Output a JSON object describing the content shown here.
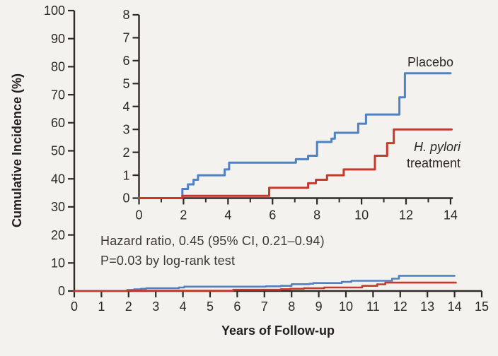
{
  "figure": {
    "ylabel": "Cumulative Incidence (%)",
    "xlabel": "Years of Follow-up",
    "annotation_line1": "Hazard ratio, 0.45 (95% CI, 0.21–0.94)",
    "annotation_line2": "P=0.03 by log-rank test",
    "series_labels": {
      "placebo": "Placebo",
      "treatment_line1": "H. pylori",
      "treatment_line2": "treatment"
    }
  },
  "chart_data": {
    "type": "line",
    "subtype": "cumulative-incidence-step-curves-with-inset",
    "title": "",
    "xlabel": "Years of Follow-up",
    "ylabel": "Cumulative Incidence (%)",
    "grid": false,
    "legend_position": "inline-curve-labels",
    "annotations": [
      "Hazard ratio, 0.45 (95% CI, 0.21–0.94)",
      "P=0.03 by log-rank test"
    ],
    "main_axes": {
      "xlim": [
        0,
        15
      ],
      "ylim": [
        0,
        100
      ],
      "xticks": [
        0,
        1,
        2,
        3,
        4,
        5,
        6,
        7,
        8,
        9,
        10,
        11,
        12,
        13,
        14,
        15
      ],
      "yticks": [
        0,
        10,
        20,
        30,
        40,
        50,
        60,
        70,
        80,
        90,
        100
      ]
    },
    "inset_axes": {
      "xlim": [
        0,
        14.1
      ],
      "ylim": [
        0,
        8
      ],
      "xticks": [
        0,
        2,
        4,
        6,
        8,
        10,
        12,
        14
      ],
      "minor_xticks": [
        1,
        3,
        5,
        7,
        9,
        11,
        13
      ],
      "yticks": [
        0,
        1,
        2,
        3,
        4,
        5,
        6,
        7,
        8
      ]
    },
    "series": [
      {
        "name": "Placebo",
        "color": "#4f81c3",
        "units": "percent cumulative incidence vs years of follow-up",
        "step_points": [
          [
            0,
            0
          ],
          [
            1.95,
            0.4
          ],
          [
            2.2,
            0.6
          ],
          [
            2.45,
            0.8
          ],
          [
            2.65,
            1.0
          ],
          [
            3.85,
            1.25
          ],
          [
            4.05,
            1.55
          ],
          [
            7.05,
            1.7
          ],
          [
            7.6,
            1.85
          ],
          [
            8.0,
            2.45
          ],
          [
            8.65,
            2.6
          ],
          [
            8.8,
            2.85
          ],
          [
            9.85,
            3.25
          ],
          [
            10.2,
            3.65
          ],
          [
            11.7,
            4.4
          ],
          [
            11.95,
            5.45
          ]
        ],
        "end_x": 14.0
      },
      {
        "name": "H. pylori treatment",
        "color": "#c8392b",
        "units": "percent cumulative incidence vs years of follow-up",
        "step_points": [
          [
            0,
            0
          ],
          [
            1.95,
            0.1
          ],
          [
            5.85,
            0.45
          ],
          [
            7.6,
            0.65
          ],
          [
            7.95,
            0.8
          ],
          [
            8.45,
            1.0
          ],
          [
            9.2,
            1.25
          ],
          [
            10.6,
            1.85
          ],
          [
            11.15,
            2.4
          ],
          [
            11.45,
            3.0
          ]
        ],
        "end_x": 14.05
      }
    ]
  }
}
